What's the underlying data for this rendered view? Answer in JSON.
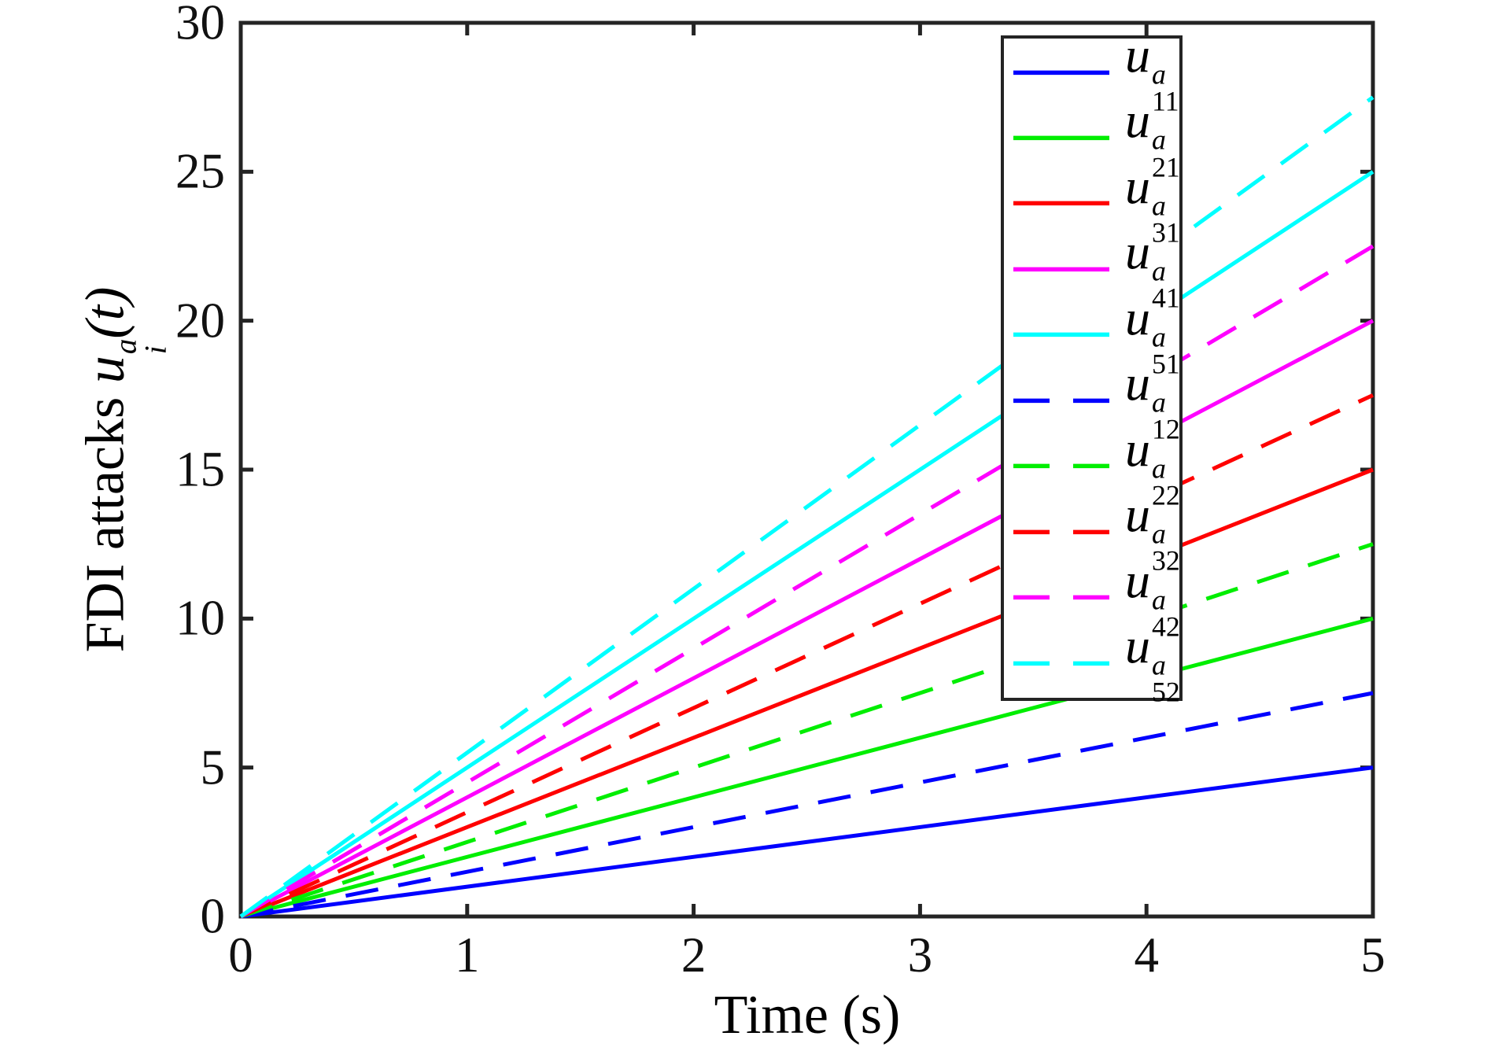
{
  "figure": {
    "background": "#ffffff",
    "axis_color": "#242424",
    "text_color": "#111111"
  },
  "chart_data": {
    "type": "line",
    "title": "",
    "xlabel": "Time (s)",
    "ylabel": "FDI attacks u_i^a(t)",
    "ylabel_parts": {
      "prefix": "FDI attacks ",
      "var": "u",
      "sup": "a",
      "sub": "i",
      "suffix": "(t)"
    },
    "xlim": [
      0,
      5
    ],
    "ylim": [
      0,
      30
    ],
    "x_ticks": [
      0,
      1,
      2,
      3,
      4,
      5
    ],
    "y_ticks": [
      0,
      5,
      10,
      15,
      20,
      25,
      30
    ],
    "grid": false,
    "legend_position": "upper-right-inside",
    "series": [
      {
        "name": "u_11^a",
        "legend": {
          "base": "u",
          "sup": "a",
          "sub": "11"
        },
        "color": "#0000FF",
        "style": "solid",
        "slope": 1.0,
        "x": [
          0,
          5
        ],
        "y": [
          0,
          5
        ]
      },
      {
        "name": "u_21^a",
        "legend": {
          "base": "u",
          "sup": "a",
          "sub": "21"
        },
        "color": "#00EE00",
        "style": "solid",
        "slope": 2.0,
        "x": [
          0,
          5
        ],
        "y": [
          0,
          10
        ]
      },
      {
        "name": "u_31^a",
        "legend": {
          "base": "u",
          "sup": "a",
          "sub": "31"
        },
        "color": "#FF0000",
        "style": "solid",
        "slope": 3.0,
        "x": [
          0,
          5
        ],
        "y": [
          0,
          15
        ]
      },
      {
        "name": "u_41^a",
        "legend": {
          "base": "u",
          "sup": "a",
          "sub": "41"
        },
        "color": "#FF00FF",
        "style": "solid",
        "slope": 4.0,
        "x": [
          0,
          5
        ],
        "y": [
          0,
          20
        ]
      },
      {
        "name": "u_51^a",
        "legend": {
          "base": "u",
          "sup": "a",
          "sub": "51"
        },
        "color": "#00FFFF",
        "style": "solid",
        "slope": 5.0,
        "x": [
          0,
          5
        ],
        "y": [
          0,
          25
        ]
      },
      {
        "name": "u_12^a",
        "legend": {
          "base": "u",
          "sup": "a",
          "sub": "12"
        },
        "color": "#0000FF",
        "style": "dashed",
        "slope": 1.5,
        "x": [
          0,
          5
        ],
        "y": [
          0,
          7.5
        ]
      },
      {
        "name": "u_22^a",
        "legend": {
          "base": "u",
          "sup": "a",
          "sub": "22"
        },
        "color": "#00EE00",
        "style": "dashed",
        "slope": 2.5,
        "x": [
          0,
          5
        ],
        "y": [
          0,
          12.5
        ]
      },
      {
        "name": "u_32^a",
        "legend": {
          "base": "u",
          "sup": "a",
          "sub": "32"
        },
        "color": "#FF0000",
        "style": "dashed",
        "slope": 3.5,
        "x": [
          0,
          5
        ],
        "y": [
          0,
          17.5
        ]
      },
      {
        "name": "u_42^a",
        "legend": {
          "base": "u",
          "sup": "a",
          "sub": "42"
        },
        "color": "#FF00FF",
        "style": "dashed",
        "slope": 4.5,
        "x": [
          0,
          5
        ],
        "y": [
          0,
          22.5
        ]
      },
      {
        "name": "u_52^a",
        "legend": {
          "base": "u",
          "sup": "a",
          "sub": "52"
        },
        "color": "#00FFFF",
        "style": "dashed",
        "slope": 5.5,
        "x": [
          0,
          5
        ],
        "y": [
          0,
          27.5
        ]
      }
    ]
  }
}
